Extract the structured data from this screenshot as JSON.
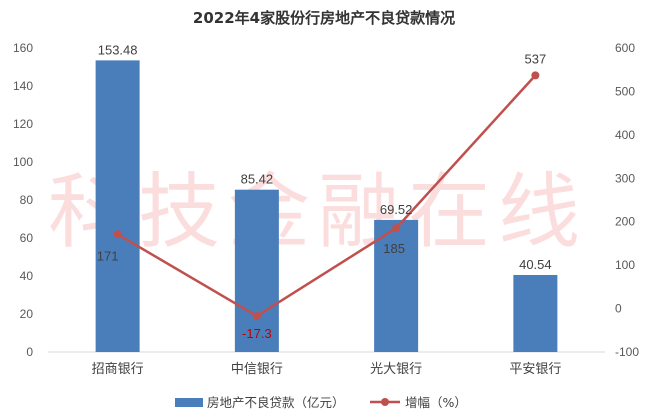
{
  "chart_data": {
    "type": "bar+line",
    "title": "2022年4家股份行房地产不良贷款情况",
    "categories": [
      "招商银行",
      "中信银行",
      "光大银行",
      "平安银行"
    ],
    "series": [
      {
        "name": "房地产不良贷款（亿元）",
        "type": "bar",
        "axis": "left",
        "values": [
          153.48,
          85.42,
          69.52,
          40.54
        ],
        "labels": [
          "153.48",
          "85.42",
          "69.52",
          "40.54"
        ]
      },
      {
        "name": "增幅（%）",
        "type": "line",
        "axis": "right",
        "values": [
          171,
          -17.3,
          185,
          537
        ],
        "labels": [
          "171",
          "-17.3",
          "185",
          "537"
        ]
      }
    ],
    "left_axis": {
      "ylim": [
        0,
        160
      ],
      "ticks": [
        "0",
        "20",
        "40",
        "60",
        "80",
        "100",
        "120",
        "140",
        "160"
      ]
    },
    "right_axis": {
      "ylim": [
        -100,
        600
      ],
      "ticks": [
        "-100",
        "0",
        "100",
        "200",
        "300",
        "400",
        "500",
        "600"
      ]
    },
    "grid": false,
    "legend_position": "bottom",
    "colors": {
      "bar": "#4a7ebb",
      "line": "#c0504d",
      "negative_label": "#c00000"
    },
    "watermark": "科技金融在线"
  }
}
